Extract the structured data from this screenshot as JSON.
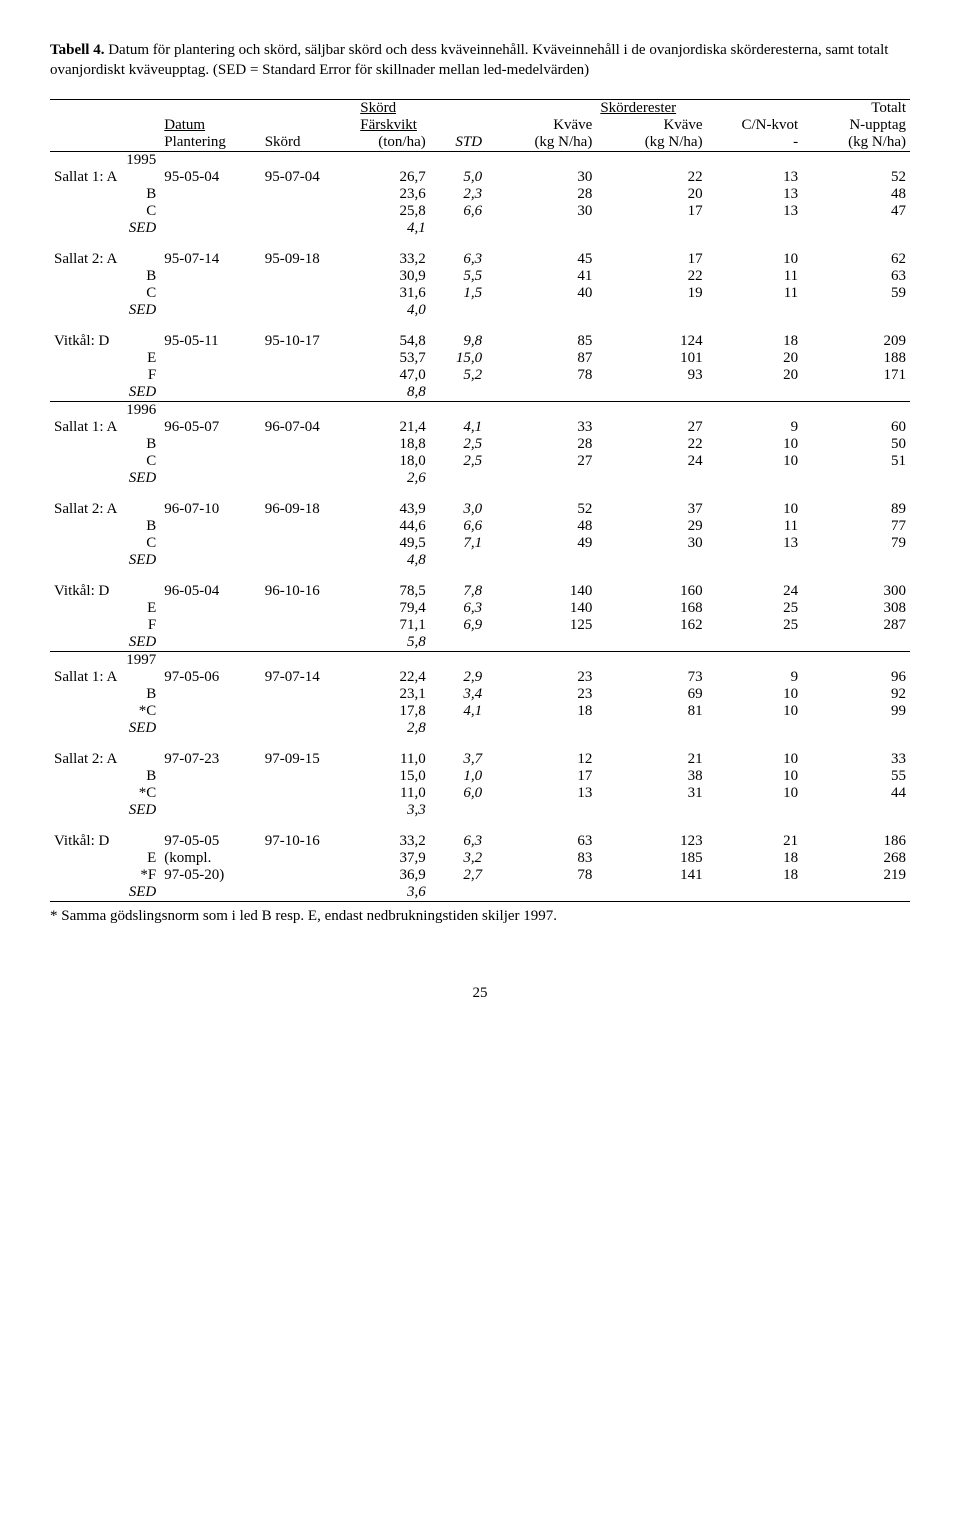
{
  "caption": {
    "lead": "Tabell 4.",
    "text": " Datum för plantering och skörd, säljbar skörd och dess kväveinnehåll. Kväveinnehåll i de ovanjordiska skörderesterna, samt totalt ovanjordiskt kväveupptag. (SED = Standard Error för skillnader mellan led-medelvärden)"
  },
  "headers": {
    "skord": "Skörd",
    "skorderester": "Skörderester",
    "totalt": "Totalt",
    "datum": "Datum",
    "farskvikt": "Färskvikt",
    "kvave": "Kväve",
    "cnkvot": "C/N-kvot",
    "nupptag": "N-upptag",
    "plantering": "Plantering",
    "skord2": "Skörd",
    "tonha": "(ton/ha)",
    "std": "STD",
    "kgnha": "(kg N/ha)",
    "dash": "-"
  },
  "years": {
    "y1995": "1995",
    "y1996": "1996",
    "y1997": "1997"
  },
  "labels": {
    "s1a": "Sallat 1: A",
    "s2a": "Sallat 2: A",
    "vd": "Vitkål: D",
    "b": "B",
    "c": "C",
    "e": "E",
    "f": "F",
    "starC": "*C",
    "starF": "*F",
    "sed": "SED",
    "kompl": "(kompl.",
    "d9720": "97-05-20)"
  },
  "rows": {
    "g1": {
      "plant": "95-05-04",
      "harv": "95-07-04",
      "a": [
        "26,7",
        "5,0",
        "30",
        "22",
        "13",
        "52"
      ],
      "b": [
        "23,6",
        "2,3",
        "28",
        "20",
        "13",
        "48"
      ],
      "c": [
        "25,8",
        "6,6",
        "30",
        "17",
        "13",
        "47"
      ],
      "sed": "4,1"
    },
    "g2": {
      "plant": "95-07-14",
      "harv": "95-09-18",
      "a": [
        "33,2",
        "6,3",
        "45",
        "17",
        "10",
        "62"
      ],
      "b": [
        "30,9",
        "5,5",
        "41",
        "22",
        "11",
        "63"
      ],
      "c": [
        "31,6",
        "1,5",
        "40",
        "19",
        "11",
        "59"
      ],
      "sed": "4,0"
    },
    "g3": {
      "plant": "95-05-11",
      "harv": "95-10-17",
      "d": [
        "54,8",
        "9,8",
        "85",
        "124",
        "18",
        "209"
      ],
      "e": [
        "53,7",
        "15,0",
        "87",
        "101",
        "20",
        "188"
      ],
      "f": [
        "47,0",
        "5,2",
        "78",
        "93",
        "20",
        "171"
      ],
      "sed": "8,8"
    },
    "g4": {
      "plant": "96-05-07",
      "harv": "96-07-04",
      "a": [
        "21,4",
        "4,1",
        "33",
        "27",
        "9",
        "60"
      ],
      "b": [
        "18,8",
        "2,5",
        "28",
        "22",
        "10",
        "50"
      ],
      "c": [
        "18,0",
        "2,5",
        "27",
        "24",
        "10",
        "51"
      ],
      "sed": "2,6"
    },
    "g5": {
      "plant": "96-07-10",
      "harv": "96-09-18",
      "a": [
        "43,9",
        "3,0",
        "52",
        "37",
        "10",
        "89"
      ],
      "b": [
        "44,6",
        "6,6",
        "48",
        "29",
        "11",
        "77"
      ],
      "c": [
        "49,5",
        "7,1",
        "49",
        "30",
        "13",
        "79"
      ],
      "sed": "4,8"
    },
    "g6": {
      "plant": "96-05-04",
      "harv": "96-10-16",
      "d": [
        "78,5",
        "7,8",
        "140",
        "160",
        "24",
        "300"
      ],
      "e": [
        "79,4",
        "6,3",
        "140",
        "168",
        "25",
        "308"
      ],
      "f": [
        "71,1",
        "6,9",
        "125",
        "162",
        "25",
        "287"
      ],
      "sed": "5,8"
    },
    "g7": {
      "plant": "97-05-06",
      "harv": "97-07-14",
      "a": [
        "22,4",
        "2,9",
        "23",
        "73",
        "9",
        "96"
      ],
      "b": [
        "23,1",
        "3,4",
        "23",
        "69",
        "10",
        "92"
      ],
      "c": [
        "17,8",
        "4,1",
        "18",
        "81",
        "10",
        "99"
      ],
      "sed": "2,8"
    },
    "g8": {
      "plant": "97-07-23",
      "harv": "97-09-15",
      "a": [
        "11,0",
        "3,7",
        "12",
        "21",
        "10",
        "33"
      ],
      "b": [
        "15,0",
        "1,0",
        "17",
        "38",
        "10",
        "55"
      ],
      "c": [
        "11,0",
        "6,0",
        "13",
        "31",
        "10",
        "44"
      ],
      "sed": "3,3"
    },
    "g9": {
      "plant": "97-05-05",
      "harv": "97-10-16",
      "d": [
        "33,2",
        "6,3",
        "63",
        "123",
        "21",
        "186"
      ],
      "e": [
        "37,9",
        "3,2",
        "83",
        "185",
        "18",
        "268"
      ],
      "f": [
        "36,9",
        "2,7",
        "78",
        "141",
        "18",
        "219"
      ],
      "sed": "3,6"
    }
  },
  "footnote": "* Samma gödslingsnorm som i led B resp. E, endast nedbrukningstiden skiljer 1997.",
  "pagenum": "25"
}
